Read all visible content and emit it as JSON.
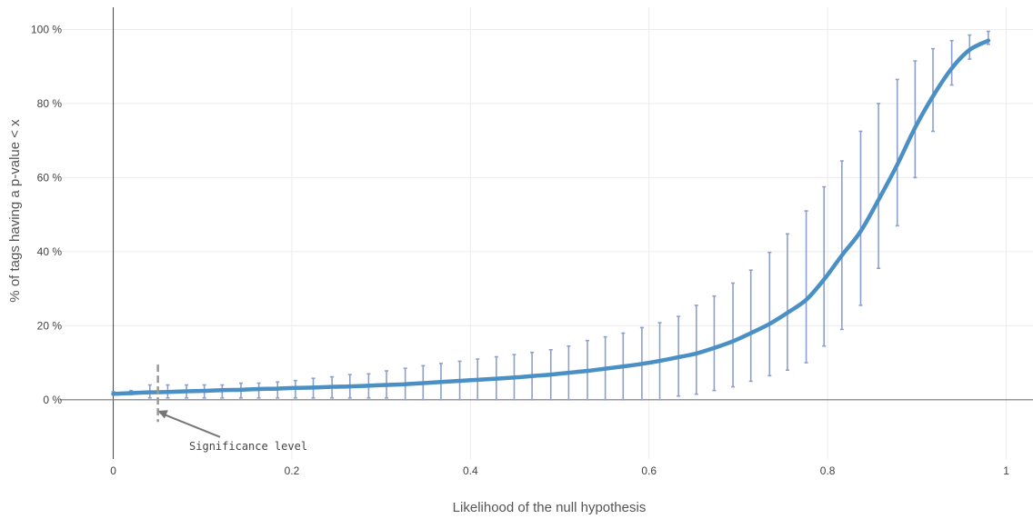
{
  "chart_data": {
    "type": "line",
    "title": "",
    "xlabel": "Likelihood of the null hypothesis",
    "ylabel": "% of tags having a p-value < x",
    "xlim": [
      -0.08,
      1.03
    ],
    "ylim": [
      -0.16,
      1.06
    ],
    "x_ticks": [
      {
        "value": 0,
        "label": "0"
      },
      {
        "value": 0.2,
        "label": "0.2"
      },
      {
        "value": 0.4,
        "label": "0.4"
      },
      {
        "value": 0.6,
        "label": "0.6"
      },
      {
        "value": 0.8,
        "label": "0.8"
      },
      {
        "value": 1,
        "label": "1"
      }
    ],
    "y_ticks": [
      {
        "value": 0,
        "label": "0 %"
      },
      {
        "value": 0.2,
        "label": "20 %"
      },
      {
        "value": 0.4,
        "label": "40 %"
      },
      {
        "value": 0.6,
        "label": "60 %"
      },
      {
        "value": 0.8,
        "label": "80 %"
      },
      {
        "value": 1,
        "label": "100 %"
      }
    ],
    "grid": true,
    "series": [
      {
        "color": "#4a90c4",
        "x": [
          0,
          0.02,
          0.041,
          0.061,
          0.082,
          0.102,
          0.122,
          0.143,
          0.163,
          0.184,
          0.204,
          0.224,
          0.245,
          0.265,
          0.286,
          0.306,
          0.327,
          0.347,
          0.367,
          0.388,
          0.408,
          0.429,
          0.449,
          0.469,
          0.49,
          0.51,
          0.531,
          0.551,
          0.571,
          0.592,
          0.612,
          0.633,
          0.653,
          0.673,
          0.694,
          0.714,
          0.735,
          0.755,
          0.776,
          0.796,
          0.816,
          0.837,
          0.857,
          0.878,
          0.898,
          0.918,
          0.939,
          0.959,
          0.98
        ],
        "y": [
          0.016,
          0.018,
          0.02,
          0.021,
          0.023,
          0.024,
          0.026,
          0.027,
          0.029,
          0.03,
          0.032,
          0.033,
          0.035,
          0.036,
          0.038,
          0.04,
          0.042,
          0.045,
          0.048,
          0.051,
          0.054,
          0.057,
          0.06,
          0.064,
          0.068,
          0.073,
          0.078,
          0.084,
          0.09,
          0.097,
          0.105,
          0.115,
          0.125,
          0.14,
          0.158,
          0.18,
          0.205,
          0.235,
          0.27,
          0.325,
          0.39,
          0.455,
          0.54,
          0.635,
          0.735,
          0.82,
          0.895,
          0.945,
          0.97
        ],
        "error_low": [
          0.013,
          0.014,
          0.005,
          0.005,
          0.005,
          0.005,
          0.005,
          0.005,
          0.005,
          0.005,
          0.005,
          0.005,
          0.005,
          0.005,
          0.005,
          0.005,
          0.0,
          0.0,
          0.0,
          0.0,
          0.0,
          0.0,
          0.0,
          0.0,
          0.0,
          0.0,
          0.0,
          0.0,
          0.0,
          0.0,
          0.0,
          0.01,
          0.015,
          0.025,
          0.035,
          0.05,
          0.065,
          0.08,
          0.1,
          0.145,
          0.19,
          0.255,
          0.355,
          0.47,
          0.6,
          0.725,
          0.85,
          0.92,
          0.96
        ],
        "error_high": [
          0.022,
          0.025,
          0.04,
          0.04,
          0.04,
          0.04,
          0.04,
          0.045,
          0.045,
          0.048,
          0.052,
          0.058,
          0.062,
          0.068,
          0.07,
          0.078,
          0.085,
          0.092,
          0.098,
          0.104,
          0.11,
          0.116,
          0.122,
          0.128,
          0.135,
          0.145,
          0.16,
          0.17,
          0.18,
          0.195,
          0.208,
          0.225,
          0.255,
          0.28,
          0.315,
          0.35,
          0.398,
          0.448,
          0.51,
          0.575,
          0.645,
          0.725,
          0.8,
          0.865,
          0.915,
          0.948,
          0.97,
          0.985,
          0.995
        ]
      }
    ],
    "significance_marker": {
      "x": 0.05,
      "y_top": 0.095,
      "y_bottom": -0.06,
      "color": "#999999"
    },
    "annotation": {
      "text": "Significance level",
      "points_to": {
        "x": 0.05,
        "y": -0.03
      },
      "text_at": {
        "x": 0.085,
        "y": -0.135
      }
    }
  }
}
